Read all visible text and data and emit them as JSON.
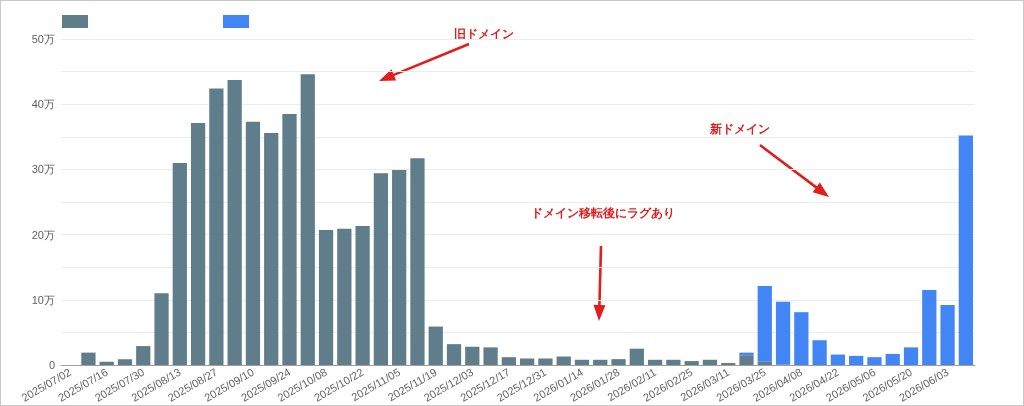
{
  "chart_data": {
    "type": "bar",
    "stacked": true,
    "categories": [
      "2025/07/02",
      null,
      "2025/07/16",
      null,
      "2025/07/30",
      null,
      "2025/08/13",
      null,
      "2025/08/27",
      null,
      "2025/09/10",
      null,
      "2025/09/24",
      null,
      "2025/10/08",
      null,
      "2025/10/22",
      null,
      "2025/11/05",
      null,
      "2025/11/19",
      null,
      "2025/12/03",
      null,
      "2025/12/17",
      null,
      "2025/12/31",
      null,
      "2026/01/14",
      null,
      "2026/01/28",
      null,
      "2026/02/11",
      null,
      "2026/02/25",
      null,
      "2026/03/11",
      null,
      "2026/03/25",
      null,
      "2026/04/08",
      null,
      "2026/04/22",
      null,
      "2026/05/06",
      null,
      "2026/05/20",
      null,
      "2026/06/03",
      null
    ],
    "series": [
      {
        "color": "#607d8b",
        "values": [
          0,
          1.9,
          0.5,
          0.9,
          2.9,
          11.0,
          31.0,
          37.1,
          42.4,
          43.7,
          37.3,
          35.6,
          38.5,
          44.6,
          20.7,
          20.9,
          21.3,
          29.4,
          29.9,
          31.7,
          5.9,
          3.2,
          2.8,
          2.7,
          1.2,
          1.0,
          1.0,
          1.3,
          0.8,
          0.8,
          0.9,
          2.5,
          0.8,
          0.8,
          0.6,
          0.8,
          0.3,
          1.5,
          0.5,
          0.1,
          null,
          null,
          null,
          null,
          null,
          null,
          null,
          null,
          null,
          null
        ]
      },
      {
        "color": "#4285f4",
        "values": [
          null,
          null,
          null,
          null,
          null,
          null,
          null,
          null,
          null,
          null,
          null,
          null,
          null,
          null,
          null,
          null,
          null,
          null,
          null,
          null,
          null,
          null,
          null,
          null,
          null,
          null,
          null,
          null,
          null,
          null,
          null,
          null,
          null,
          null,
          null,
          null,
          null,
          0.4,
          11.6,
          9.6,
          8.1,
          3.8,
          1.6,
          1.4,
          1.2,
          1.7,
          2.7,
          11.5,
          9.2,
          35.2
        ]
      }
    ],
    "ylim": [
      0,
      50
    ],
    "yticks": [
      0,
      {
        "value": 5,
        "label": null
      },
      {
        "value": 10,
        "label": "10万"
      },
      {
        "value": 15,
        "label": null
      },
      {
        "value": 20,
        "label": "20万"
      },
      {
        "value": 25,
        "label": null
      },
      {
        "value": 30,
        "label": "30万"
      },
      {
        "value": 35,
        "label": null
      },
      {
        "value": 40,
        "label": "40万"
      },
      {
        "value": 45,
        "label": null
      },
      {
        "value": 50,
        "label": "50万"
      }
    ],
    "grid": "y",
    "annotations": [
      "旧ドメイン",
      "新ドメイン",
      "ドメイン移転後にラグあり"
    ]
  }
}
